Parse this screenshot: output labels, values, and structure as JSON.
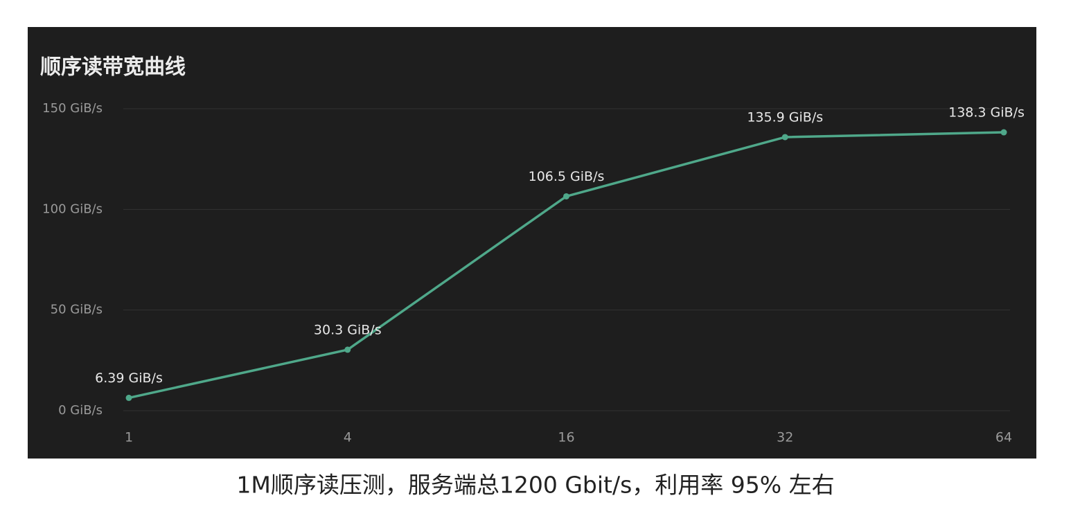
{
  "chart_data": {
    "type": "line",
    "title": "顺序读带宽曲线",
    "categories": [
      "1",
      "4",
      "16",
      "32",
      "64"
    ],
    "values": [
      6.39,
      30.3,
      106.5,
      135.9,
      138.3
    ],
    "value_labels": [
      "6.39 GiB/s",
      "30.3 GiB/s",
      "106.5 GiB/s",
      "135.9 GiB/s",
      "138.3 GiB/s"
    ],
    "color": "#4fa88a",
    "ylim": [
      0,
      150
    ],
    "yticks": [
      {
        "value": 0,
        "label": "0 GiB/s"
      },
      {
        "value": 50,
        "label": "50 GiB/s"
      },
      {
        "value": 100,
        "label": "100 GiB/s"
      },
      {
        "value": 150,
        "label": "150 GiB/s"
      }
    ],
    "grid": true
  },
  "caption": "1M顺序读压测，服务端总1200 Gbit/s，利用率 95% 左右"
}
